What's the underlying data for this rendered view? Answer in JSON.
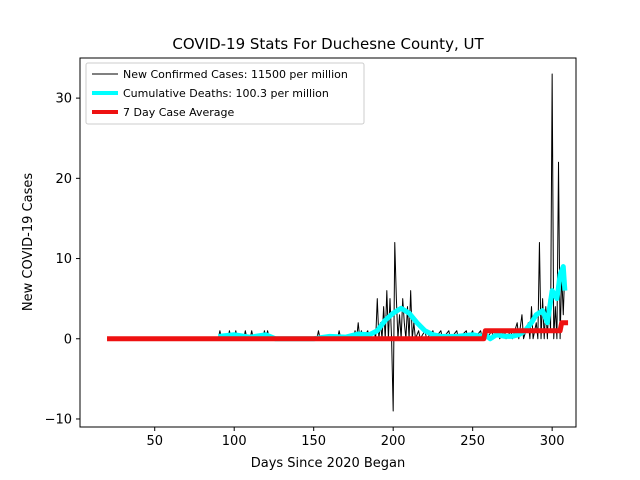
{
  "chart_data": {
    "type": "line",
    "title": "COVID-19 Stats For Duchesne County, UT",
    "xlabel": "Days Since 2020 Began",
    "ylabel": "New COVID-19 Cases",
    "xlim": [
      3,
      315
    ],
    "ylim": [
      -11,
      35
    ],
    "xticks": [
      50,
      100,
      150,
      200,
      250,
      300
    ],
    "yticks": [
      -10,
      0,
      10,
      20,
      30
    ],
    "grid": false,
    "legend_position": "top-left",
    "series": [
      {
        "name": "New Confirmed Cases: 11500 per million",
        "color": "#000000",
        "points": [
          [
            20,
            0
          ],
          [
            90,
            0
          ],
          [
            91,
            1
          ],
          [
            92,
            0
          ],
          [
            96,
            0
          ],
          [
            97,
            1
          ],
          [
            98,
            0
          ],
          [
            100,
            0
          ],
          [
            101,
            1
          ],
          [
            102,
            0
          ],
          [
            106,
            0
          ],
          [
            107,
            1
          ],
          [
            108,
            0
          ],
          [
            110,
            0
          ],
          [
            111,
            1
          ],
          [
            112,
            0
          ],
          [
            118,
            0
          ],
          [
            119,
            1
          ],
          [
            120,
            0
          ],
          [
            121,
            1
          ],
          [
            122,
            0
          ],
          [
            152,
            0
          ],
          [
            153,
            1
          ],
          [
            154,
            0
          ],
          [
            165,
            0
          ],
          [
            166,
            1
          ],
          [
            167,
            0
          ],
          [
            175,
            0
          ],
          [
            176,
            1
          ],
          [
            177,
            0
          ],
          [
            178,
            2
          ],
          [
            179,
            0
          ],
          [
            180,
            1
          ],
          [
            181,
            0
          ],
          [
            184,
            1
          ],
          [
            185,
            0
          ],
          [
            188,
            1
          ],
          [
            189,
            0
          ],
          [
            190,
            5
          ],
          [
            191,
            0
          ],
          [
            192,
            2
          ],
          [
            193,
            0
          ],
          [
            194,
            4
          ],
          [
            195,
            0
          ],
          [
            196,
            6
          ],
          [
            197,
            0
          ],
          [
            198,
            5
          ],
          [
            199,
            0
          ],
          [
            200,
            -9
          ],
          [
            201,
            12
          ],
          [
            202,
            5
          ],
          [
            203,
            0
          ],
          [
            204,
            3
          ],
          [
            205,
            0
          ],
          [
            206,
            5
          ],
          [
            207,
            2
          ],
          [
            208,
            0
          ],
          [
            209,
            4
          ],
          [
            210,
            0
          ],
          [
            211,
            6
          ],
          [
            212,
            0
          ],
          [
            213,
            2
          ],
          [
            214,
            0
          ],
          [
            216,
            1
          ],
          [
            217,
            0
          ],
          [
            220,
            1
          ],
          [
            221,
            0
          ],
          [
            225,
            1
          ],
          [
            226,
            0
          ],
          [
            230,
            1
          ],
          [
            231,
            0
          ],
          [
            235,
            1
          ],
          [
            236,
            0
          ],
          [
            240,
            1
          ],
          [
            241,
            0
          ],
          [
            246,
            1
          ],
          [
            247,
            0
          ],
          [
            250,
            1
          ],
          [
            251,
            0
          ],
          [
            255,
            1
          ],
          [
            256,
            0
          ],
          [
            258,
            1
          ],
          [
            259,
            0
          ],
          [
            262,
            1
          ],
          [
            263,
            0
          ],
          [
            266,
            1
          ],
          [
            267,
            0
          ],
          [
            270,
            1
          ],
          [
            271,
            0
          ],
          [
            274,
            1
          ],
          [
            275,
            0
          ],
          [
            278,
            2
          ],
          [
            279,
            0
          ],
          [
            281,
            3
          ],
          [
            282,
            0
          ],
          [
            285,
            2
          ],
          [
            286,
            0
          ],
          [
            287,
            4
          ],
          [
            288,
            0
          ],
          [
            290,
            2
          ],
          [
            291,
            0
          ],
          [
            292,
            12
          ],
          [
            293,
            0
          ],
          [
            294,
            5
          ],
          [
            295,
            0
          ],
          [
            296,
            4
          ],
          [
            297,
            0
          ],
          [
            298,
            5
          ],
          [
            299,
            1
          ],
          [
            300,
            33
          ],
          [
            301,
            0
          ],
          [
            302,
            4
          ],
          [
            303,
            0
          ],
          [
            304,
            22
          ],
          [
            305,
            0
          ],
          [
            306,
            8
          ],
          [
            307,
            3
          ],
          [
            308,
            9
          ]
        ]
      },
      {
        "name": "Cumulative Deaths: 100.3 per million",
        "color": "#00ffff",
        "points": [
          [
            90,
            0.3
          ],
          [
            100,
            0.5
          ],
          [
            110,
            0.2
          ],
          [
            120,
            0.5
          ],
          [
            126,
            0
          ],
          [
            150,
            0
          ],
          [
            160,
            0.3
          ],
          [
            170,
            0.2
          ],
          [
            178,
            0.6
          ],
          [
            185,
            0.5
          ],
          [
            190,
            1
          ],
          [
            195,
            2.3
          ],
          [
            200,
            3.2
          ],
          [
            205,
            3.8
          ],
          [
            210,
            3.2
          ],
          [
            215,
            2
          ],
          [
            220,
            1
          ],
          [
            225,
            0.5
          ],
          [
            230,
            0.3
          ],
          [
            240,
            0.3
          ],
          [
            250,
            0.5
          ],
          [
            255,
            0.3
          ],
          [
            258,
            0.5
          ],
          [
            261,
            0
          ],
          [
            265,
            0.5
          ],
          [
            270,
            0.3
          ],
          [
            275,
            0.3
          ],
          [
            279,
            0.5
          ],
          [
            283,
            1
          ],
          [
            287,
            2
          ],
          [
            290,
            3
          ],
          [
            294,
            3.5
          ],
          [
            297,
            2
          ],
          [
            300,
            6
          ],
          [
            303,
            5
          ],
          [
            305,
            8
          ],
          [
            307,
            9
          ],
          [
            308,
            6
          ]
        ]
      },
      {
        "name": "7 Day Case Average",
        "color": "#ee1111",
        "points": [
          [
            20,
            0
          ],
          [
            257,
            0
          ],
          [
            258,
            1
          ],
          [
            305,
            1
          ],
          [
            306,
            2
          ],
          [
            310,
            2
          ]
        ]
      }
    ]
  }
}
